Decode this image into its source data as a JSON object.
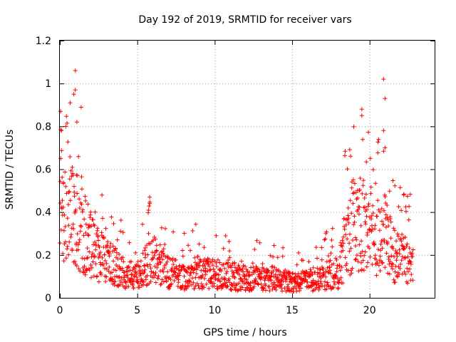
{
  "chart_data": {
    "type": "scatter",
    "title": "Day 192 of 2019, SRMTID for receiver vars",
    "xlabel": "GPS time / hours",
    "ylabel": "SRMTID / TECUs",
    "xlim": [
      0,
      24.2
    ],
    "ylim": [
      0,
      1.2
    ],
    "xticks": [
      0,
      5,
      10,
      15,
      20
    ],
    "xtick_labels": [
      "0",
      "5",
      "10",
      "15",
      "20"
    ],
    "yticks": [
      0,
      0.2,
      0.4,
      0.6,
      0.8,
      1.0,
      1.2
    ],
    "ytick_labels": [
      "0",
      "0.2",
      "0.4",
      "0.6",
      "0.8",
      "1",
      "1.2"
    ],
    "grid": true,
    "marker": "+",
    "color": "#ff0000",
    "series": [
      {
        "name": "SRMTID",
        "envelope": {
          "x": [
            0,
            0.5,
            1,
            1.5,
            2,
            2.5,
            3,
            4,
            5,
            5.5,
            6,
            6.5,
            7,
            8,
            9,
            10,
            11,
            12,
            13,
            14,
            15,
            16,
            17,
            18,
            18.5,
            19,
            19.5,
            20,
            20.5,
            21,
            21.5,
            22,
            22.7
          ],
          "y": [
            0.5,
            0.45,
            0.4,
            0.3,
            0.25,
            0.2,
            0.17,
            0.12,
            0.1,
            0.14,
            0.18,
            0.15,
            0.12,
            0.1,
            0.12,
            0.11,
            0.1,
            0.09,
            0.09,
            0.09,
            0.07,
            0.08,
            0.1,
            0.12,
            0.25,
            0.3,
            0.35,
            0.28,
            0.25,
            0.3,
            0.2,
            0.18,
            0.16
          ]
        },
        "notable_points": [
          {
            "x": 0.05,
            "y": 0.87
          },
          {
            "x": 0.1,
            "y": 0.78
          },
          {
            "x": 0.9,
            "y": 0.95
          },
          {
            "x": 1.0,
            "y": 1.06
          },
          {
            "x": 1.0,
            "y": 0.97
          },
          {
            "x": 1.1,
            "y": 0.82
          },
          {
            "x": 5.8,
            "y": 0.47
          },
          {
            "x": 5.8,
            "y": 0.44
          },
          {
            "x": 19.5,
            "y": 0.88
          },
          {
            "x": 19.5,
            "y": 0.85
          },
          {
            "x": 20.9,
            "y": 1.02
          },
          {
            "x": 21.0,
            "y": 0.93
          },
          {
            "x": 20.9,
            "y": 0.78
          },
          {
            "x": 21.0,
            "y": 0.7
          },
          {
            "x": 22.2,
            "y": 0.48
          }
        ],
        "time_range_hours": [
          0,
          22.8
        ],
        "sample_count_approx": 1400
      }
    ]
  }
}
